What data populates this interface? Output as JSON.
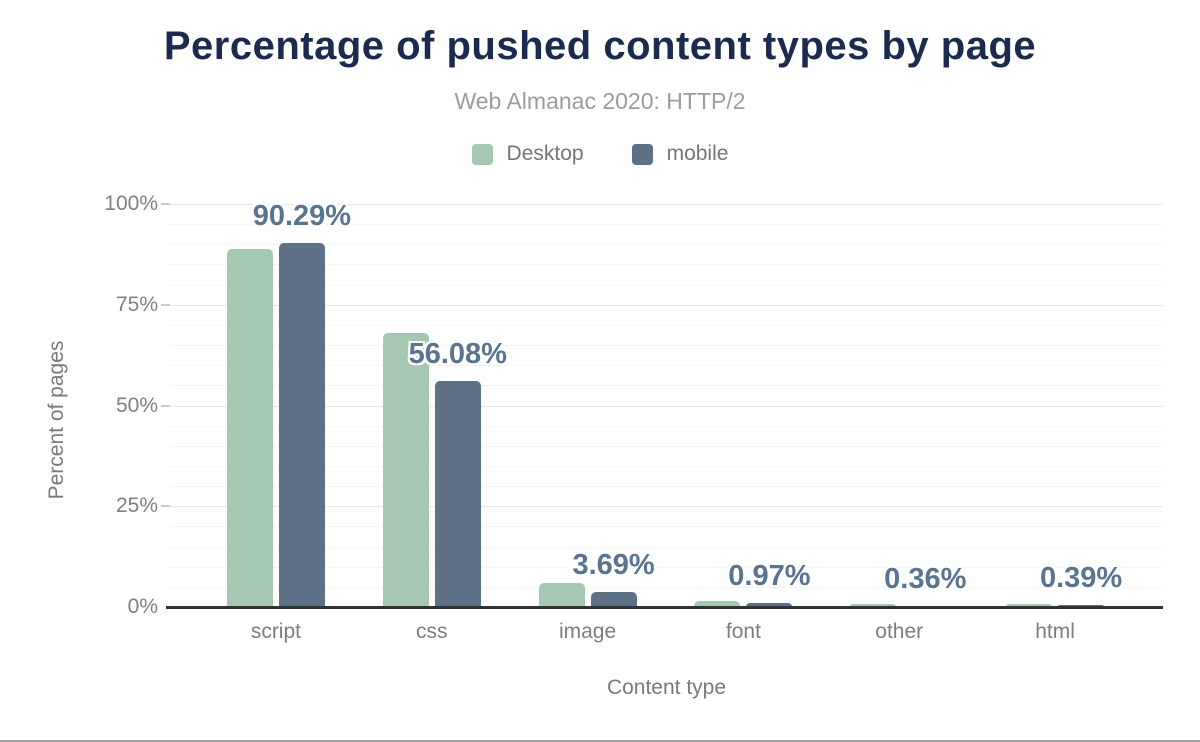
{
  "title": "Percentage of pushed content types by page",
  "subtitle": "Web Almanac 2020: HTTP/2",
  "legend": [
    {
      "label": "Desktop",
      "color": "#a6c7b2"
    },
    {
      "label": "mobile",
      "color": "#5d7086"
    }
  ],
  "y_axis": {
    "title": "Percent of pages",
    "tick_labels": [
      "0%",
      "25%",
      "50%",
      "75%",
      "100%"
    ]
  },
  "x_axis": {
    "title": "Content type"
  },
  "chart_data": {
    "type": "bar",
    "categories": [
      "script",
      "css",
      "image",
      "font",
      "other",
      "html"
    ],
    "series": [
      {
        "name": "Desktop",
        "color": "#a6c7b2",
        "values": [
          88.8,
          68.0,
          6.0,
          1.5,
          0.7,
          0.8
        ]
      },
      {
        "name": "mobile",
        "color": "#5d7086",
        "values": [
          90.29,
          56.08,
          3.69,
          0.97,
          0.36,
          0.39
        ]
      }
    ],
    "data_labels": {
      "series": "mobile",
      "values": [
        "90.29%",
        "56.08%",
        "3.69%",
        "0.97%",
        "0.36%",
        "0.39%"
      ]
    },
    "title": "Percentage of pushed content types by page",
    "subtitle": "Web Almanac 2020: HTTP/2",
    "xlabel": "Content type",
    "ylabel": "Percent of pages",
    "ylim": [
      0,
      100
    ],
    "y_major_step": 25,
    "y_minor_step": 5,
    "grid": true,
    "legend_position": "top"
  },
  "colors": {
    "title": "#1b2b4d",
    "subtitle": "#9c9c9c",
    "axis_text": "#7d7d7d",
    "axis_line": "#333333",
    "major_grid": "#e7e7e7",
    "minor_grid": "#f5f5f5",
    "data_label": "#5a7390",
    "desktop_bar": "#a6c7b2",
    "mobile_bar": "#5d7086"
  }
}
